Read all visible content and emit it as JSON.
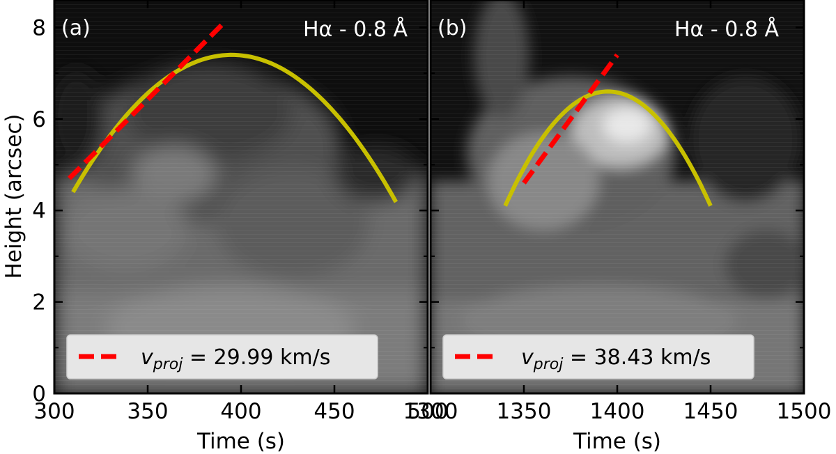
{
  "y_axis_label": "Height (arcsec)",
  "x_axis_label": "Time (s)",
  "colors": {
    "fit_curve": "#c8c000",
    "velocity_line": "#ff0000",
    "legend_bg": "#e6e6e6",
    "frame": "#000000"
  },
  "chart_data": [
    {
      "type": "line",
      "panel_label": "(a)",
      "title": "Hα - 0.8 Å",
      "xlim": [
        300,
        500
      ],
      "ylim": [
        0,
        8.6
      ],
      "xticks": [
        300,
        350,
        400,
        450,
        500
      ],
      "xtick_labels": [
        "300",
        "350",
        "400",
        "450",
        "500"
      ],
      "yticks": [
        0,
        2,
        4,
        6,
        8
      ],
      "ytick_labels": [
        "0",
        "2",
        "4",
        "6",
        "8"
      ],
      "parabola_fit": {
        "t_start": 310,
        "t_end": 483,
        "t_peak": 395,
        "h_peak": 7.4,
        "h_start": 4.4
      },
      "velocity_line": {
        "x": [
          308,
          392
        ],
        "y": [
          4.7,
          8.15
        ]
      },
      "legend": {
        "symbol": "v",
        "subscript": "proj",
        "value_text": " = 29.99 km/s"
      }
    },
    {
      "type": "line",
      "panel_label": "(b)",
      "title": "Hα - 0.8 Å",
      "xlim": [
        1300,
        1500
      ],
      "ylim": [
        0,
        8.6
      ],
      "xticks": [
        1300,
        1350,
        1400,
        1450,
        1500
      ],
      "xtick_labels": [
        "1300",
        "1350",
        "1400",
        "1450",
        "1500"
      ],
      "yticks": [
        0,
        2,
        4,
        6,
        8
      ],
      "ytick_labels": [
        "",
        "",
        "",
        "",
        ""
      ],
      "parabola_fit": {
        "t_start": 1340,
        "t_end": 1450,
        "t_peak": 1395,
        "h_peak": 6.6,
        "h_start": 4.1
      },
      "velocity_line": {
        "x": [
          1350,
          1400
        ],
        "y": [
          4.6,
          7.4
        ]
      },
      "legend": {
        "symbol": "v",
        "subscript": "proj",
        "value_text": " = 38.43 km/s"
      }
    }
  ]
}
